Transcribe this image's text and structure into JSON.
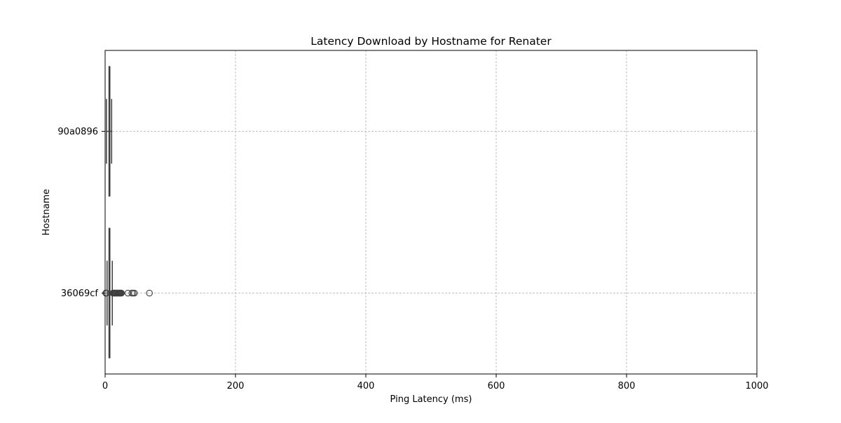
{
  "chart_data": {
    "type": "box",
    "orientation": "horizontal",
    "title": "Latency Download by Hostname for Renater",
    "xlabel": "Ping Latency (ms)",
    "ylabel": "Hostname",
    "xlim": [
      0,
      1000
    ],
    "xticks": [
      0,
      200,
      400,
      600,
      800,
      1000
    ],
    "grid": true,
    "categories": [
      "90a0896",
      "36069cf"
    ],
    "boxes": [
      {
        "name": "90a0896",
        "whisker_low": 2,
        "q1": 6,
        "median": 7,
        "q3": 7,
        "whisker_high": 10,
        "outliers": []
      },
      {
        "name": "36069cf",
        "whisker_low": 3,
        "q1": 6,
        "median": 7,
        "q3": 7,
        "whisker_high": 11,
        "outliers": [
          1,
          2,
          12,
          13,
          14,
          15,
          16,
          17,
          18,
          19,
          20,
          21,
          22,
          23,
          24,
          25,
          35,
          41,
          43,
          45,
          68
        ]
      }
    ],
    "colors": {
      "box_edge": "#3f3f3f",
      "grid": "#b0b0b0",
      "axis": "#000000"
    }
  }
}
